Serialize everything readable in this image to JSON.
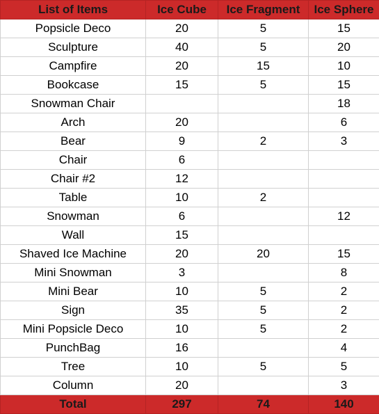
{
  "table": {
    "headers": [
      "List of Items",
      "Ice Cube",
      "Ice Fragment",
      "Ice Sphere"
    ],
    "rows": [
      [
        "Popsicle Deco",
        "20",
        "5",
        "15"
      ],
      [
        "Sculpture",
        "40",
        "5",
        "20"
      ],
      [
        "Campfire",
        "20",
        "15",
        "10"
      ],
      [
        "Bookcase",
        "15",
        "5",
        "15"
      ],
      [
        "Snowman Chair",
        "",
        "",
        "18"
      ],
      [
        "Arch",
        "20",
        "",
        "6"
      ],
      [
        "Bear",
        "9",
        "2",
        "3"
      ],
      [
        "Chair",
        "6",
        "",
        ""
      ],
      [
        "Chair #2",
        "12",
        "",
        ""
      ],
      [
        "Table",
        "10",
        "2",
        ""
      ],
      [
        "Snowman",
        "6",
        "",
        "12"
      ],
      [
        "Wall",
        "15",
        "",
        ""
      ],
      [
        "Shaved Ice Machine",
        "20",
        "20",
        "15"
      ],
      [
        "Mini Snowman",
        "3",
        "",
        "8"
      ],
      [
        "Mini Bear",
        "10",
        "5",
        "2"
      ],
      [
        "Sign",
        "35",
        "5",
        "2"
      ],
      [
        "Mini Popsicle Deco",
        "10",
        "5",
        "2"
      ],
      [
        "PunchBag",
        "16",
        "",
        "4"
      ],
      [
        "Tree",
        "10",
        "5",
        "5"
      ],
      [
        "Column",
        "20",
        "",
        "3"
      ]
    ],
    "total": [
      "Total",
      "297",
      "74",
      "140"
    ]
  },
  "colors": {
    "header_background": "#cc2a2a",
    "grid_line": "#d0d0d0"
  }
}
